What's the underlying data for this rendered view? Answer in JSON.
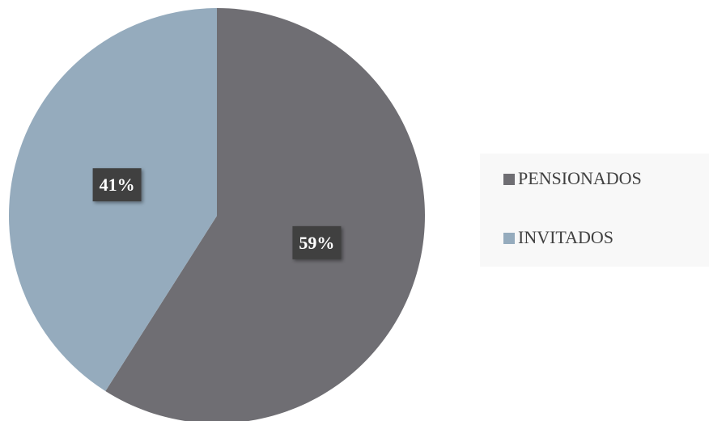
{
  "chart_data": {
    "type": "pie",
    "categories": [
      "PENSIONADOS",
      "INVITADOS"
    ],
    "values": [
      59,
      41
    ],
    "value_labels": [
      "59%",
      "41%"
    ],
    "colors": [
      "#6f6e73",
      "#95abbd"
    ],
    "legend": "right"
  }
}
